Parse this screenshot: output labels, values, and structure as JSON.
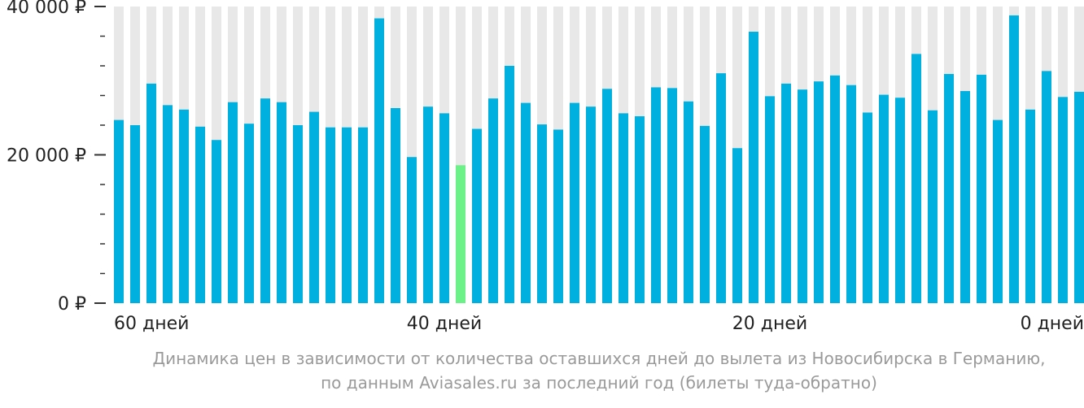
{
  "colors": {
    "bar": "#00b0de",
    "highlight_bar": "#6cf088",
    "background_column": "#e8e8e8",
    "axis_text": "#222222",
    "caption_text": "#9a9a9a"
  },
  "chart_data": {
    "type": "bar",
    "ylim": [
      0,
      40000
    ],
    "y_ticks": [
      {
        "value": 40000,
        "label": "40 000 ₽"
      },
      {
        "value": 20000,
        "label": "20 000 ₽"
      },
      {
        "value": 0,
        "label": "0 ₽"
      }
    ],
    "minor_tick_step": 4000,
    "x_labels": [
      {
        "index": 0,
        "label": "60 дней"
      },
      {
        "index": 20,
        "label": "40 дней"
      },
      {
        "index": 40,
        "label": "20 дней"
      },
      {
        "index": 59,
        "label": "0 дней"
      }
    ],
    "highlight_index": 21,
    "values": [
      24700,
      24000,
      29600,
      26700,
      26100,
      23800,
      22000,
      27100,
      24200,
      27600,
      27100,
      24000,
      25800,
      23700,
      23700,
      23700,
      38400,
      26300,
      19700,
      26500,
      25600,
      18600,
      23500,
      27600,
      32000,
      27000,
      24100,
      23400,
      27000,
      26500,
      28900,
      25600,
      25200,
      29100,
      29000,
      27200,
      23900,
      31000,
      20900,
      36600,
      27900,
      29600,
      28800,
      29900,
      30700,
      29400,
      25700,
      28100,
      27700,
      33600,
      26000,
      30900,
      28600,
      30800,
      24700,
      38800,
      26100,
      31300,
      27800,
      28500
    ]
  },
  "caption": {
    "line1": "Динамика цен в зависимости от количества оставшихся дней до вылета из Новосибирска в Германию,",
    "line2": "по данным Aviasales.ru за последний год (билеты туда-обратно)"
  }
}
